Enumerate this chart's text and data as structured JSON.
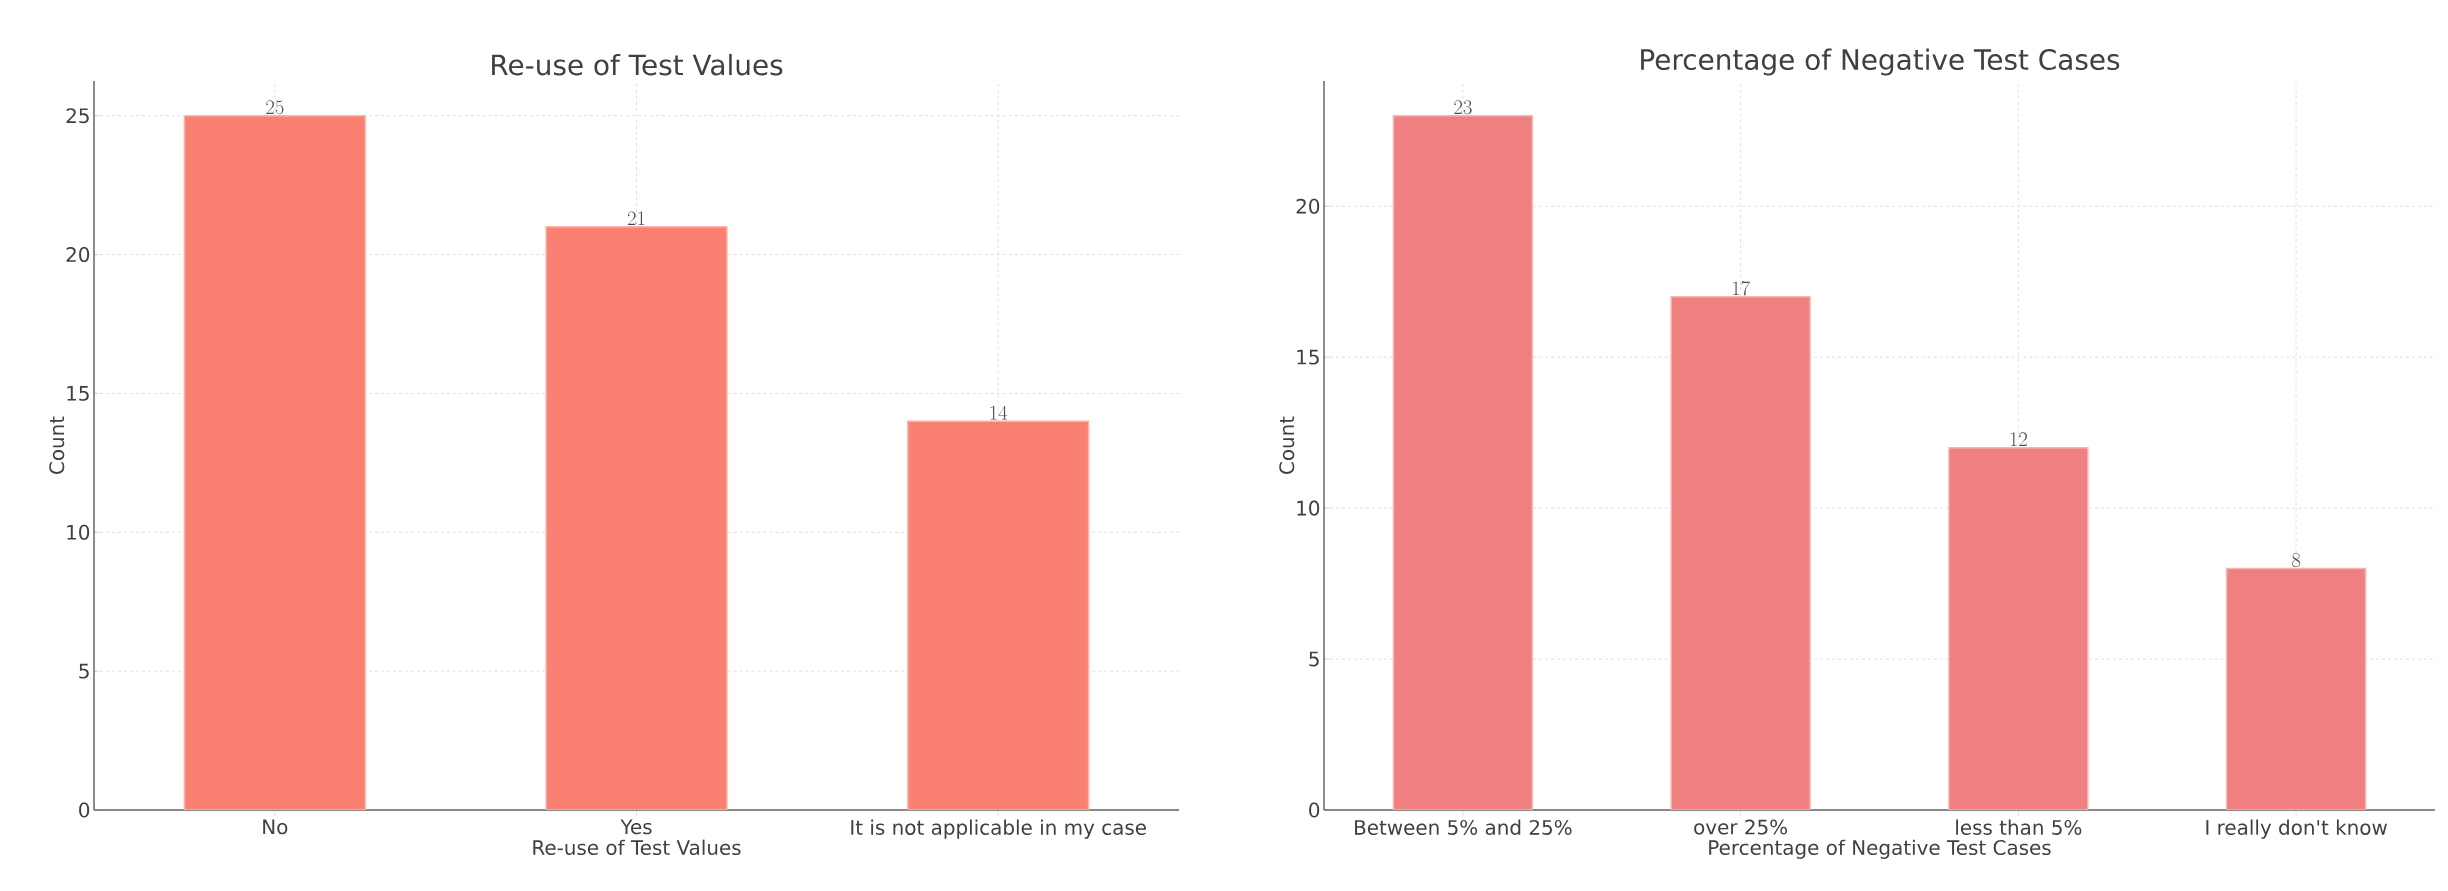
{
  "chart_data": [
    {
      "type": "bar",
      "title": "Re-use of Test Values",
      "xlabel": "Re-use of Test Values",
      "ylabel": "Count",
      "categories": [
        "No",
        "Yes",
        "It is not applicable in my case"
      ],
      "values": [
        25,
        21,
        14
      ],
      "color": "#fa8072",
      "ylim": [
        0,
        26.25
      ],
      "yticks": [
        0,
        5,
        10,
        15,
        20,
        25
      ],
      "grid": true,
      "data_labels": true
    },
    {
      "type": "bar",
      "title": "Percentage of Negative Test Cases",
      "xlabel": "Percentage of Negative Test Cases",
      "ylabel": "Count",
      "categories": [
        "Between 5% and 25%",
        "over 25%",
        "less than 5%",
        "I really don't know"
      ],
      "values": [
        23,
        17,
        12,
        8
      ],
      "color": "#f08080",
      "ylim": [
        0,
        24.15
      ],
      "yticks": [
        0,
        5,
        10,
        15,
        20
      ],
      "grid": true,
      "data_labels": true
    }
  ]
}
